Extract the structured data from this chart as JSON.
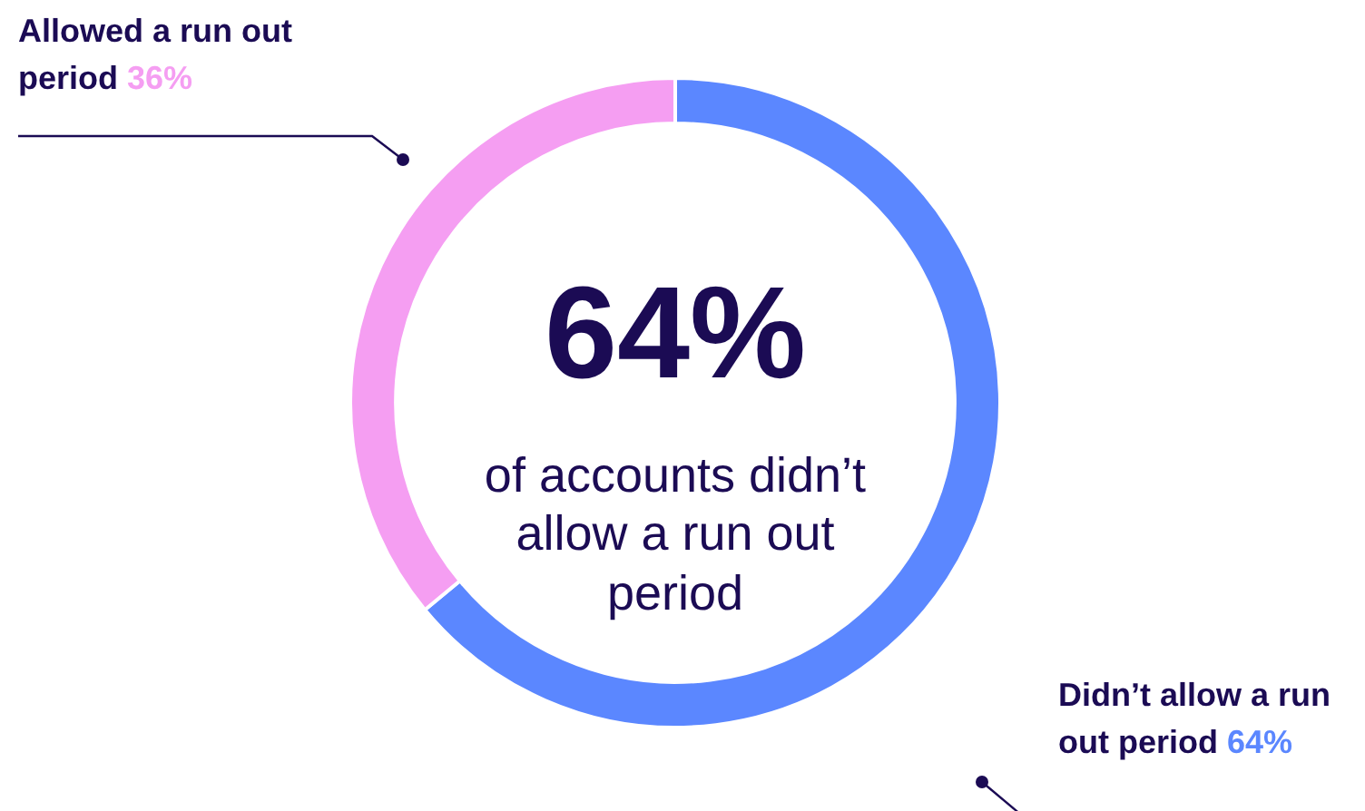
{
  "chart_data": {
    "type": "donut",
    "categories": [
      "Didn’t allow a run out period",
      "Allowed a run out period"
    ],
    "values": [
      64,
      36
    ],
    "colors": [
      "#5b87ff",
      "#f59ef2"
    ],
    "value_labels": [
      "64%",
      "36%"
    ],
    "annotations": [
      "64%",
      "of accounts didn’t allow a run out period"
    ],
    "legend": false
  }
}
